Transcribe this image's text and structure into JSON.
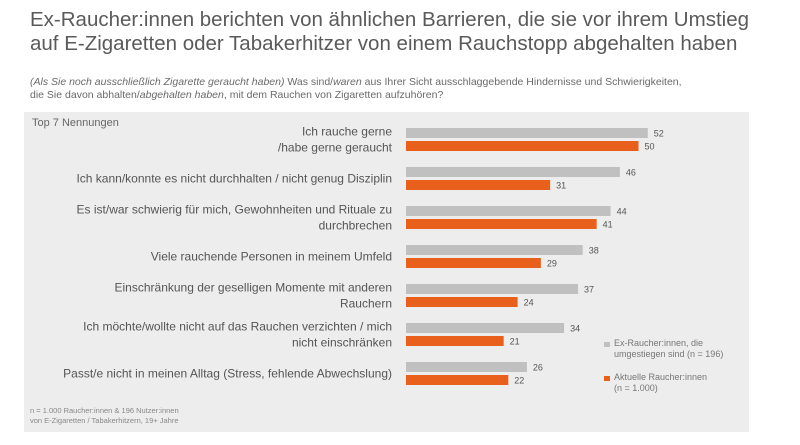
{
  "title_line1": "Ex-Raucher:innen berichten von ähnlichen Barrieren, die sie vor ihrem Umstieg",
  "title_line2": "auf E-Zigaretten oder Tabakerhitzer von einem Rauchstopp abgehalten haben",
  "question": {
    "part1": "(Als Sie noch ausschließlich Zigarette geraucht haben)",
    "part2": " Was sind/",
    "part3": "waren",
    "part4": " aus Ihrer Sicht ausschlaggebende Hindernisse und Schwierigkeiten,",
    "part5": "die Sie davon abhalten/",
    "part6": "abgehalten haben",
    "part7": ", mit dem Rauchen von Zigaretten aufzuhören?"
  },
  "panel_label": "Top 7 Nennungen",
  "footnote": {
    "line1": "n = 1.000 Raucher:innen  & 196 Nutzer:innen",
    "line2": "von E-Zigaretten / Tabakerhitzern,   19+ Jahre"
  },
  "colors": {
    "series1": "#c0c0c0",
    "series2": "#e8601c",
    "panel": "#ededed"
  },
  "chart_data": {
    "type": "bar",
    "orientation": "horizontal",
    "title": "Top 7 Nennungen",
    "categories": [
      [
        "Ich rauche gerne",
        "/habe gerne geraucht"
      ],
      [
        "Ich kann/konnte es nicht durchhalten / nicht genug Disziplin"
      ],
      [
        "Es ist/war schwierig für mich, Gewohnheiten und Rituale zu",
        "durchbrechen"
      ],
      [
        "Viele rauchende Personen in meinem Umfeld"
      ],
      [
        "Einschränkung der geselligen Momente mit anderen",
        "Rauchern"
      ],
      [
        "Ich möchte/wollte nicht auf das Rauchen verzichten / mich",
        "nicht einschränken"
      ],
      [
        "Passt/e nicht in meinen Alltag (Stress, fehlende Abwechslung)"
      ]
    ],
    "series": [
      {
        "name": "Ex-Raucher:innen, die umgestiegen sind (n = 196)",
        "legend_lines": [
          "Ex-Raucher:innen, die",
          "umgestiegen sind (n = 196)"
        ],
        "color": "#c0c0c0",
        "values": [
          52,
          46,
          44,
          38,
          37,
          34,
          26
        ]
      },
      {
        "name": "Aktuelle Raucher:innen (n = 1.000)",
        "legend_lines": [
          "Aktuelle Raucher:innen",
          "(n = 1.000)"
        ],
        "color": "#e8601c",
        "values": [
          50,
          31,
          41,
          29,
          24,
          21,
          22
        ]
      }
    ],
    "xlim": [
      0,
      52
    ],
    "legend_position": "right"
  }
}
